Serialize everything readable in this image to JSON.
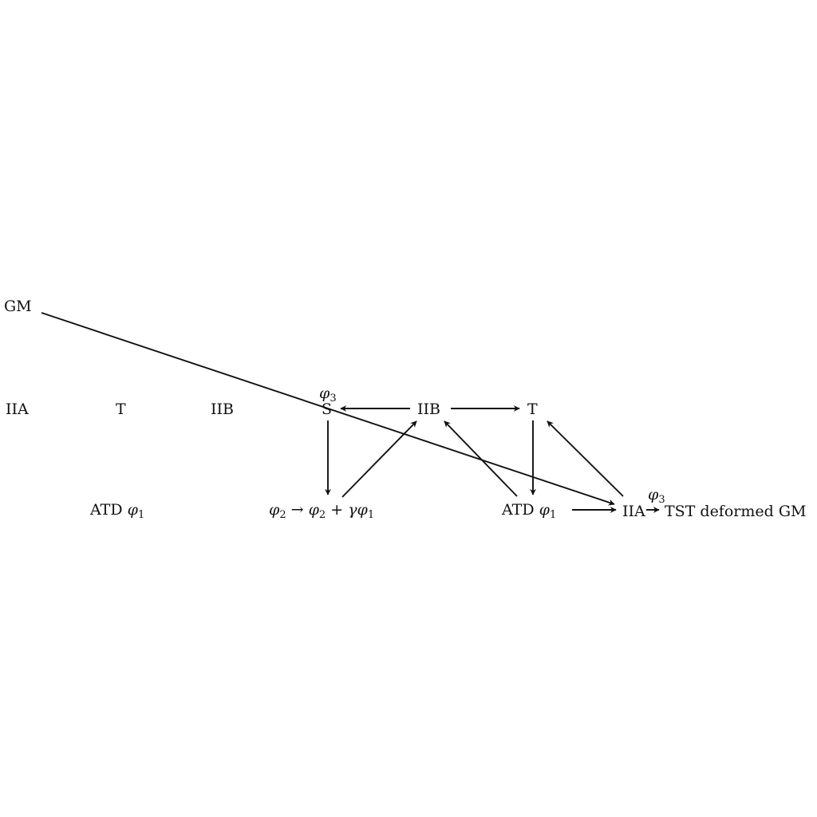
{
  "nodes": {
    "gm": "GM",
    "iia_left": "IIA",
    "t_left": "T",
    "iib_left": "IIB",
    "s": "S",
    "phi3_top": "φ",
    "phi3_top_sub": "3",
    "iib_mid": "IIB",
    "t_right": "T",
    "atd_left_text": "ATD ",
    "atd_left_phi": "φ",
    "atd_left_sub": "1",
    "shift_phi_a": "φ",
    "shift_sub_a": "2",
    "shift_arrow": " → ",
    "shift_phi_b": "φ",
    "shift_sub_b": "2",
    "shift_plus": " + ",
    "shift_gamma": "γ",
    "shift_phi_c": "φ",
    "shift_sub_c": "1",
    "atd_right_text": "ATD ",
    "atd_right_phi": "φ",
    "atd_right_sub": "1",
    "iia_right": "IIA",
    "phi3_right": "φ",
    "phi3_right_sub": "3",
    "tst": "TST deformed GM"
  },
  "colors": {
    "ink": "#111111",
    "background": "#ffffff"
  }
}
